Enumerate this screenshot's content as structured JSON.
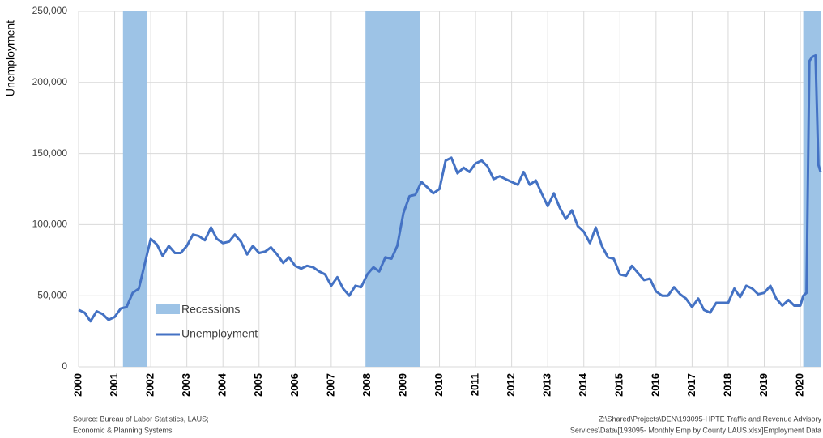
{
  "chart_data": {
    "type": "line",
    "y_label": "Unemployment",
    "x": [
      2000,
      2000.17,
      2000.33,
      2000.5,
      2000.67,
      2000.83,
      2001,
      2001.17,
      2001.33,
      2001.5,
      2001.67,
      2001.83,
      2002,
      2002.17,
      2002.33,
      2002.5,
      2002.67,
      2002.83,
      2003,
      2003.17,
      2003.33,
      2003.5,
      2003.67,
      2003.83,
      2004,
      2004.17,
      2004.33,
      2004.5,
      2004.67,
      2004.83,
      2005,
      2005.17,
      2005.33,
      2005.5,
      2005.67,
      2005.83,
      2006,
      2006.17,
      2006.33,
      2006.5,
      2006.67,
      2006.83,
      2007,
      2007.17,
      2007.33,
      2007.5,
      2007.67,
      2007.83,
      2008,
      2008.17,
      2008.33,
      2008.5,
      2008.67,
      2008.83,
      2009,
      2009.17,
      2009.33,
      2009.5,
      2009.67,
      2009.83,
      2010,
      2010.17,
      2010.33,
      2010.5,
      2010.67,
      2010.83,
      2011,
      2011.17,
      2011.33,
      2011.5,
      2011.67,
      2011.83,
      2012,
      2012.17,
      2012.33,
      2012.5,
      2012.67,
      2012.83,
      2013,
      2013.17,
      2013.33,
      2013.5,
      2013.67,
      2013.83,
      2014,
      2014.17,
      2014.33,
      2014.5,
      2014.67,
      2014.83,
      2015,
      2015.17,
      2015.33,
      2015.5,
      2015.67,
      2015.83,
      2016,
      2016.17,
      2016.33,
      2016.5,
      2016.67,
      2016.83,
      2017,
      2017.17,
      2017.33,
      2017.5,
      2017.67,
      2017.83,
      2018,
      2018.17,
      2018.33,
      2018.5,
      2018.67,
      2018.83,
      2019,
      2019.17,
      2019.33,
      2019.5,
      2019.67,
      2019.83,
      2020,
      2020.08,
      2020.17,
      2020.25,
      2020.33,
      2020.42,
      2020.5,
      2020.56
    ],
    "series": [
      {
        "name": "Unemployment",
        "color": "#4472c4",
        "values": [
          40000,
          38000,
          32000,
          39000,
          37000,
          33000,
          35000,
          41000,
          42000,
          52000,
          55000,
          72000,
          90000,
          86000,
          78000,
          85000,
          80000,
          80000,
          85000,
          93000,
          92000,
          89000,
          98000,
          90000,
          87000,
          88000,
          93000,
          88000,
          79000,
          85000,
          80000,
          81000,
          84000,
          79000,
          73000,
          77000,
          71000,
          69000,
          71000,
          70000,
          67000,
          65000,
          57000,
          63000,
          55000,
          50000,
          57000,
          56000,
          65000,
          70000,
          67000,
          77000,
          76000,
          85000,
          108000,
          120000,
          121000,
          130000,
          126000,
          122000,
          125000,
          145000,
          147000,
          136000,
          140000,
          137000,
          143000,
          145000,
          141000,
          132000,
          134000,
          132000,
          130000,
          128000,
          137000,
          128000,
          131000,
          122000,
          113000,
          122000,
          112000,
          104000,
          110000,
          99000,
          95000,
          87000,
          98000,
          85000,
          77000,
          76000,
          65000,
          64000,
          71000,
          66000,
          61000,
          62000,
          53000,
          50000,
          50000,
          56000,
          51000,
          48000,
          42000,
          48000,
          40000,
          38000,
          45000,
          45000,
          45000,
          55000,
          49000,
          57000,
          55000,
          51000,
          52000,
          57000,
          48000,
          43000,
          47000,
          43000,
          43000,
          50000,
          52000,
          215000,
          218000,
          219000,
          142000,
          137000
        ]
      }
    ],
    "recessions": {
      "name": "Recessions",
      "color": "#9dc3e6",
      "ranges": [
        [
          2001.23,
          2001.89
        ],
        [
          2007.95,
          2009.45
        ],
        [
          2020.08,
          2020.56
        ]
      ]
    },
    "xlim": [
      2000,
      2020.56
    ],
    "xticks": [
      2000,
      2001,
      2002,
      2003,
      2004,
      2005,
      2006,
      2007,
      2008,
      2009,
      2010,
      2011,
      2012,
      2013,
      2014,
      2015,
      2016,
      2017,
      2018,
      2019,
      2020
    ],
    "ylim": [
      0,
      250000
    ],
    "yticks": [
      0,
      {
        "value": 50000,
        "label": "50,000"
      },
      {
        "value": 100000,
        "label": "100,000"
      },
      {
        "value": 150000,
        "label": "150,000"
      },
      {
        "value": 200000,
        "label": "200,000"
      },
      {
        "value": 250000,
        "label": "250,000"
      }
    ],
    "grid": true,
    "source_note": [
      "Source: Bureau of Labor Statistics, LAUS;",
      "Economic & Planning Systems"
    ],
    "file_note": [
      "Z:\\Shared\\Projects\\DEN\\193095-HPTE Traffic and Revenue Advisory",
      "Services\\Data\\[193095- Monthly Emp by County LAUS.xlsx]Employment Data"
    ]
  }
}
